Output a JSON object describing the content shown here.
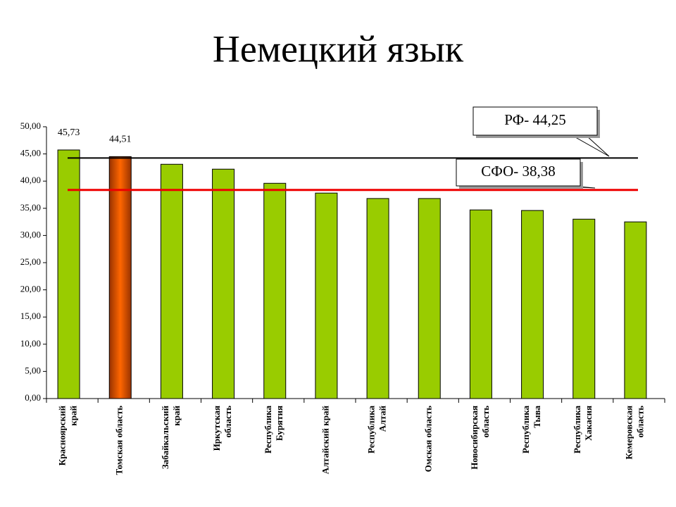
{
  "chart_data": {
    "type": "bar",
    "title": "Немецкий язык",
    "categories": [
      [
        "Красноярский",
        "край"
      ],
      [
        "Томская область"
      ],
      [
        "Забайкальский",
        "край"
      ],
      [
        "Иркутская",
        "область"
      ],
      [
        "Республика",
        "Бурятия"
      ],
      [
        "Алтайский край"
      ],
      [
        "Республика",
        "Алтай"
      ],
      [
        "Омская область"
      ],
      [
        "Новосибирская",
        "область"
      ],
      [
        "Республика",
        "Тыва"
      ],
      [
        "Республика",
        "Хакасия"
      ],
      [
        "Кемеровская",
        "область"
      ]
    ],
    "values": [
      45.73,
      44.51,
      43.1,
      42.2,
      39.6,
      37.8,
      36.8,
      36.8,
      34.7,
      34.6,
      33.0,
      32.5
    ],
    "value_labels": [
      "45,73",
      "44,51",
      null,
      null,
      null,
      null,
      null,
      null,
      null,
      null,
      null,
      null
    ],
    "colors": [
      "#99cc00",
      "#ff6600",
      "#99cc00",
      "#99cc00",
      "#99cc00",
      "#99cc00",
      "#99cc00",
      "#99cc00",
      "#99cc00",
      "#99cc00",
      "#99cc00",
      "#99cc00"
    ],
    "ylim": [
      0,
      50
    ],
    "yticks": [
      {
        "value": 0,
        "label": "0,00"
      },
      {
        "value": 5,
        "label": "5,00"
      },
      {
        "value": 10,
        "label": "10,00"
      },
      {
        "value": 15,
        "label": "15,00"
      },
      {
        "value": 20,
        "label": "20,00"
      },
      {
        "value": 25,
        "label": "25,00"
      },
      {
        "value": 30,
        "label": "30,00"
      },
      {
        "value": 35,
        "label": "35,00"
      },
      {
        "value": 40,
        "label": "40,00"
      },
      {
        "value": 45,
        "label": "45,00"
      },
      {
        "value": 50,
        "label": "50,00"
      }
    ],
    "reference_lines": [
      {
        "label": "РФ- 44,25",
        "value": 44.25,
        "color": "#000000"
      },
      {
        "label": "СФО- 38,38",
        "value": 38.38,
        "color": "#ee0000"
      }
    ]
  }
}
